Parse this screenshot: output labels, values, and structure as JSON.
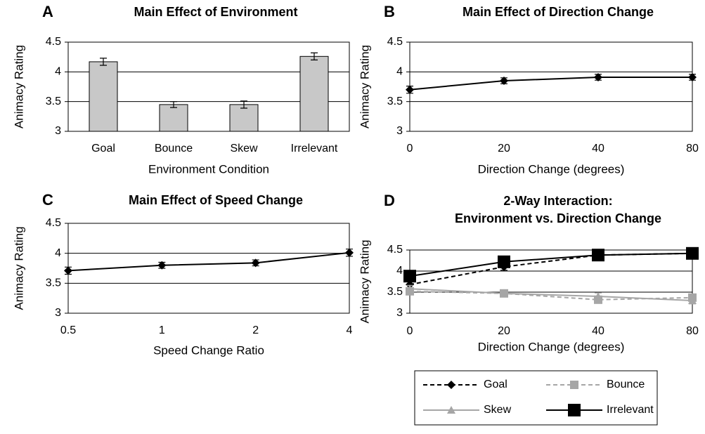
{
  "chart_data": [
    {
      "type": "bar",
      "label": "A",
      "title": [
        "Main Effect of Environment"
      ],
      "y_label": "Animacy Rating",
      "x_label": "Environment Condition",
      "categories": [
        "Goal",
        "Bounce",
        "Skew",
        "Irrelevant"
      ],
      "values": [
        4.17,
        3.45,
        3.45,
        4.26
      ],
      "errors": [
        0.06,
        0.05,
        0.06,
        0.06
      ],
      "color": "#c8c8c8",
      "ylim": [
        3,
        4.5
      ],
      "yticks": [
        3,
        3.5,
        4,
        4.5
      ],
      "grid": true
    },
    {
      "type": "line",
      "label": "B",
      "title": [
        "Main Effect of Direction Change"
      ],
      "y_label": "Animacy Rating",
      "x_label": "Direction Change (degrees)",
      "categories": [
        "0",
        "20",
        "40",
        "80"
      ],
      "values": [
        3.7,
        3.85,
        3.91,
        3.91
      ],
      "errors": [
        0.06,
        0.05,
        0.05,
        0.05
      ],
      "color": "#000000",
      "marker": "diamond",
      "ylim": [
        3,
        4.5
      ],
      "yticks": [
        3,
        3.5,
        4,
        4.5
      ],
      "grid": true
    },
    {
      "type": "line",
      "label": "C",
      "title": [
        "Main Effect of Speed Change"
      ],
      "y_label": "Animacy Rating",
      "x_label": "Speed Change Ratio",
      "categories": [
        "0.5",
        "1",
        "2",
        "4"
      ],
      "values": [
        3.71,
        3.8,
        3.84,
        4.01
      ],
      "errors": [
        0.06,
        0.05,
        0.05,
        0.06
      ],
      "color": "#000000",
      "marker": "diamond",
      "ylim": [
        3,
        4.5
      ],
      "yticks": [
        3,
        3.5,
        4,
        4.5
      ],
      "grid": true
    },
    {
      "type": "line",
      "label": "D",
      "title": [
        "2-Way Interaction:",
        "Environment vs. Direction Change"
      ],
      "y_label": "Animacy Rating",
      "x_label": "Direction Change (degrees)",
      "categories": [
        "0",
        "20",
        "40",
        "80"
      ],
      "series": [
        {
          "name": "Goal",
          "color": "#000000",
          "dash": true,
          "marker": "diamond",
          "values": [
            3.68,
            4.1,
            4.38,
            4.42
          ],
          "errors": [
            0.08,
            0.08,
            0.08,
            0.08
          ]
        },
        {
          "name": "Bounce",
          "color": "#a6a6a6",
          "dash": true,
          "marker": "square",
          "values": [
            3.52,
            3.47,
            3.32,
            3.37
          ],
          "errors": [
            0.08,
            0.08,
            0.08,
            0.08
          ]
        },
        {
          "name": "Skew",
          "color": "#a6a6a6",
          "dash": false,
          "marker": "triangle",
          "values": [
            3.58,
            3.47,
            3.4,
            3.3
          ],
          "errors": [
            0.08,
            0.08,
            0.08,
            0.08
          ]
        },
        {
          "name": "Irrelevant",
          "color": "#000000",
          "dash": false,
          "marker": "large-square",
          "values": [
            3.88,
            4.22,
            4.38,
            4.42
          ],
          "errors": [
            0.08,
            0.08,
            0.08,
            0.08
          ]
        }
      ],
      "ylim": [
        3,
        4.5
      ],
      "yticks": [
        3,
        3.5,
        4,
        4.5
      ],
      "grid": true,
      "legend": "below"
    }
  ]
}
